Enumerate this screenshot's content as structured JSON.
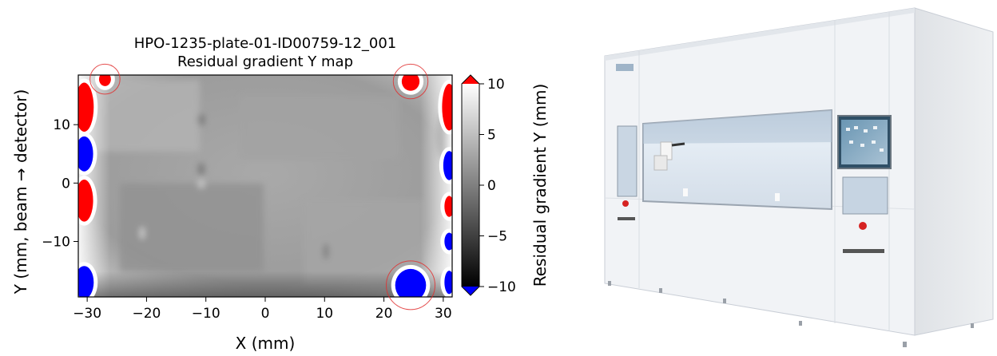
{
  "chart_data": {
    "type": "heatmap",
    "title": "HPO-1235-plate-01-ID00759-12_001",
    "subtitle": "Residual gradient Y map",
    "xlabel": "X (mm)",
    "ylabel": "Y (mm, beam → detector)",
    "colorbar_label": "Residual gradient Y (mm)",
    "xlim": [
      -31.5,
      31.5
    ],
    "ylim": [
      -19.5,
      18.5
    ],
    "clim": [
      -10,
      10
    ],
    "x_ticks": [
      -30,
      -20,
      -10,
      0,
      10,
      20,
      30
    ],
    "y_ticks": [
      -10,
      0,
      10
    ],
    "colorbar_ticks": [
      -10,
      -5,
      0,
      5,
      10
    ],
    "colormap": "gray",
    "over_color": "#ff0000",
    "under_color": "#0000ff",
    "saturated_regions": [
      {
        "kind": "over",
        "x": -27,
        "y": 17.8,
        "rx": 1.0,
        "ry": 1.2,
        "circled": true
      },
      {
        "kind": "over",
        "x": 24.5,
        "y": 17.4,
        "rx": 1.5,
        "ry": 1.6,
        "circled": true
      },
      {
        "kind": "under",
        "x": 24.5,
        "y": -17.5,
        "rx": 2.6,
        "ry": 2.8,
        "circled": true
      },
      {
        "kind": "over",
        "x": -30.5,
        "y": 13,
        "rx": 1.6,
        "ry": 4.2,
        "circled": false
      },
      {
        "kind": "under",
        "x": -30.5,
        "y": 5,
        "rx": 1.5,
        "ry": 3.0,
        "circled": false
      },
      {
        "kind": "over",
        "x": -30.5,
        "y": -3,
        "rx": 1.5,
        "ry": 3.6,
        "circled": false
      },
      {
        "kind": "under",
        "x": -30.5,
        "y": -17,
        "rx": 1.6,
        "ry": 2.8,
        "circled": false
      },
      {
        "kind": "over",
        "x": 31,
        "y": 13,
        "rx": 1.2,
        "ry": 4.0,
        "circled": false
      },
      {
        "kind": "under",
        "x": 31,
        "y": 3,
        "rx": 1.0,
        "ry": 2.5,
        "circled": false
      },
      {
        "kind": "over",
        "x": 31,
        "y": -4,
        "rx": 0.8,
        "ry": 1.8,
        "circled": false
      },
      {
        "kind": "under",
        "x": 31,
        "y": -10,
        "rx": 0.8,
        "ry": 1.5,
        "circled": false
      },
      {
        "kind": "under",
        "x": 31,
        "y": -17,
        "rx": 0.8,
        "ry": 2.0,
        "circled": false
      }
    ]
  },
  "photo": {
    "subject": "enclosed-laboratory-instrument-cabinet",
    "body_color": "#eef0f3",
    "window_color": "#d6e2ee",
    "screen_color": "#4a7fa0"
  }
}
